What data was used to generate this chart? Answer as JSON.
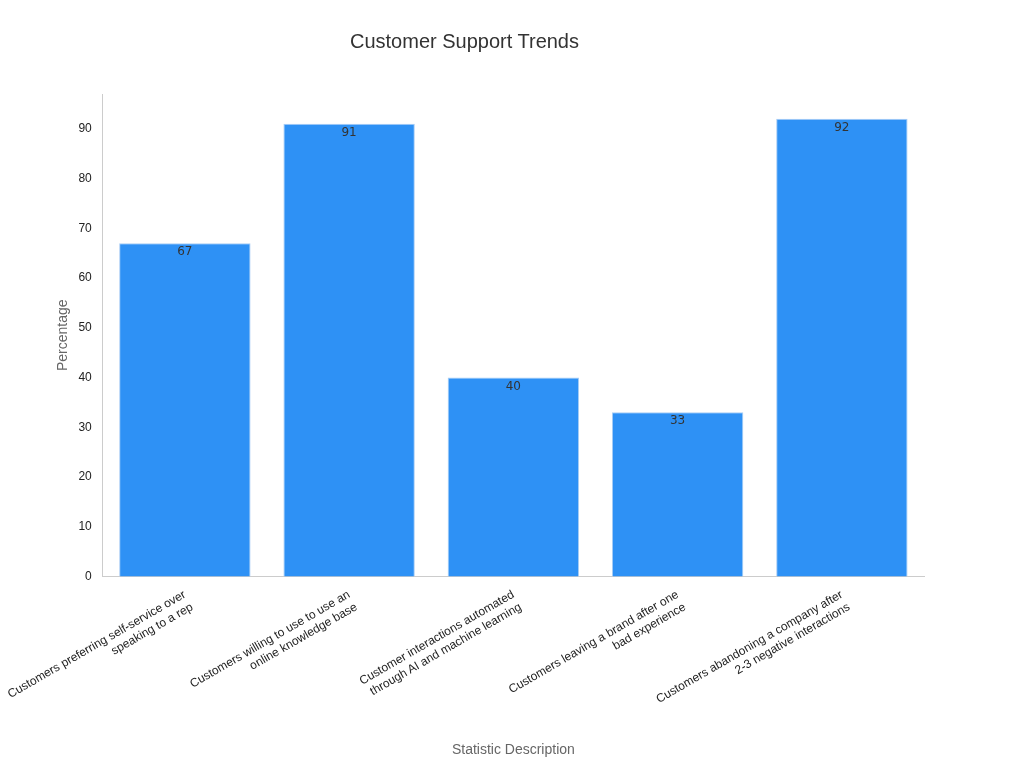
{
  "chart_data": {
    "type": "bar",
    "title": "Customer Support Trends",
    "xlabel": "Statistic Description",
    "ylabel": "Percentage",
    "categories": [
      "Customers preferring self-service over speaking to a rep",
      "Customers willing to use to use an online knowledge base",
      "Customer interactions automated through AI and machine learning",
      "Customers leaving a brand after one bad experience",
      "Customers abandoning a company after 2-3 negative interactions"
    ],
    "values": [
      67,
      91,
      40,
      33,
      92
    ],
    "color": "#2e91f5",
    "ylim": [
      0,
      97
    ],
    "yticks": [
      0,
      10,
      20,
      30,
      40,
      50,
      60,
      70,
      80,
      90
    ],
    "grid": false,
    "legend": false,
    "data_labels": true
  }
}
